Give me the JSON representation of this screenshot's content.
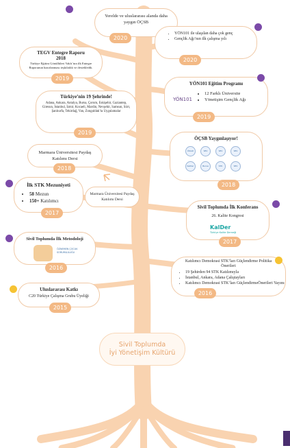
{
  "center": {
    "line1": "Sivil Toplumda",
    "line2": "İyi Yönetişim Kültürü"
  },
  "events": {
    "e2020a": {
      "text": "Yerelde ve uluslararası alanda daha yaygın ÖÇSB",
      "year": "2020"
    },
    "e2020b": {
      "items": [
        "YÖN101 ile ulaşılan daha çok genç",
        "Gençlik Ağı’nın ilk çalışma yılı"
      ],
      "year": "2020"
    },
    "e2019a": {
      "title": "TEGV Entegre Raporu 2018",
      "body": "Türkiye Eğitim Gönüllüleri Vakfı’nın ilk Entegre Raporunun hazırlanması teşkilatlık ve destekledik.",
      "year": "2019"
    },
    "e2019b": {
      "title": "YÖN101 Eğitim Programı",
      "logo": "YÖN101",
      "items": [
        "12 Farklı Üniversite",
        "Yönetişim Gençlik Ağı"
      ],
      "year": "2019"
    },
    "e2019c": {
      "title": "Türkiye’nin 19 Şehrinde!",
      "body": "Adana, Ankara, Antalya, Bursa, Çorum, Eskişehir, Gaziantep, Giresun, İstanbul, İzmir, Kocaeli, Mardin, Nevşehir, Samsun, Siirt, Şanlıurfa, Tekirdağ, Van, Zonguldak’ta Uygulamalar",
      "year": "2019"
    },
    "e2018a": {
      "text": "Marmara Üniversitesi Paydaş Katılımı Dersi",
      "year": "2018"
    },
    "e2018b": {
      "title": "ÖÇSB Yaygınlaşıyor!",
      "logos": [
        "ÖSGD",
        "SEV",
        "SEV",
        "SEV",
        "KalDer",
        "Bursa",
        "STK",
        "SEV"
      ],
      "year": "2018"
    },
    "e2017a": {
      "title": "İlk STK Mezuniyeti",
      "items": [
        {
          "num": "58",
          "label": "Mezun"
        },
        {
          "num": "150+",
          "label": "Katılımcı"
        }
      ],
      "year": "2017"
    },
    "e2017b": {
      "text": "Marmara Üniversitesi Paydaş Katılımı Dersi"
    },
    "e2017c": {
      "title": "Sivil Toplumda İlk Konferans",
      "sub": "26. Kalite Kongresi",
      "logo": "KalDer",
      "logo_sub": "Türkiye Kalite Derneği",
      "year": "2017"
    },
    "e2016a": {
      "title": "Sivil Toplumda İlk Metodoloji",
      "book": "ÖZNEMEN ÇOCUK SORUMLULUĞU",
      "year": "2016"
    },
    "e2016b": {
      "title": "Katılımcı Demokrasi STK’ları Güçlendirme Politika Önerileri",
      "items": [
        "19 Şehirden 94 STK Katılımıyla",
        "İstanbul, Ankara, Adana Çalıştayları",
        "Katılımcı Demokrasi STK’ları GüçlendirmeÖnerileri Yayını"
      ],
      "year": "2016"
    },
    "e2015": {
      "title": "Uluslararası Katkı",
      "text": "C20 Türkiye Çalışma Grubu Üyeliği",
      "year": "2015"
    }
  },
  "colors": {
    "branch": "#f9d3b0",
    "year": "#f3b985",
    "border": "#f0c9a6",
    "purple": "#7b4aa8",
    "yellow": "#f6c333"
  }
}
